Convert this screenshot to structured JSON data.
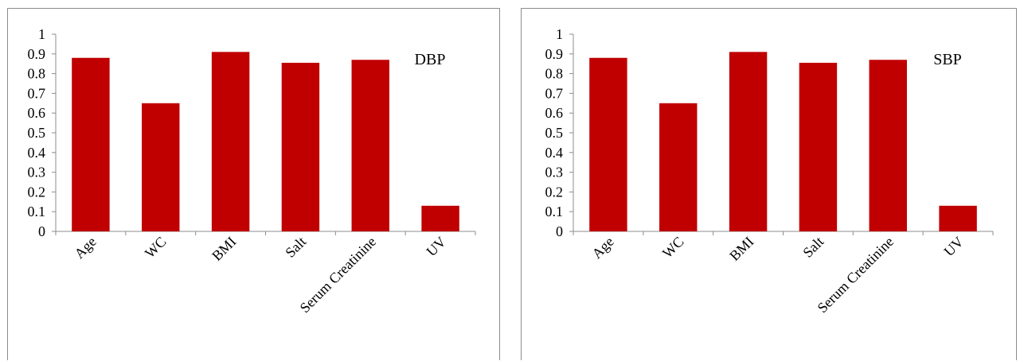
{
  "chart_data": [
    {
      "type": "bar",
      "title": "DBP",
      "categories": [
        "Age",
        "WC",
        "BMI",
        "Salt",
        "Serum Creatinine",
        "UV"
      ],
      "values": [
        0.88,
        0.65,
        0.91,
        0.855,
        0.87,
        0.13
      ],
      "ylim": [
        0,
        1
      ],
      "yticks": [
        "0",
        "0.1",
        "0.2",
        "0.3",
        "0.4",
        "0.5",
        "0.6",
        "0.7",
        "0.8",
        "0.9",
        "1"
      ],
      "xlabel": "",
      "ylabel": "",
      "bar_color": "#c00000",
      "grid": false,
      "legend": false
    },
    {
      "type": "bar",
      "title": "SBP",
      "categories": [
        "Age",
        "WC",
        "BMI",
        "Salt",
        "Serum Creatinine",
        "UV"
      ],
      "values": [
        0.88,
        0.65,
        0.91,
        0.855,
        0.87,
        0.13
      ],
      "ylim": [
        0,
        1
      ],
      "yticks": [
        "0",
        "0.1",
        "0.2",
        "0.3",
        "0.4",
        "0.5",
        "0.6",
        "0.7",
        "0.8",
        "0.9",
        "1"
      ],
      "xlabel": "",
      "ylabel": "",
      "bar_color": "#c00000",
      "grid": false,
      "legend": false
    }
  ]
}
